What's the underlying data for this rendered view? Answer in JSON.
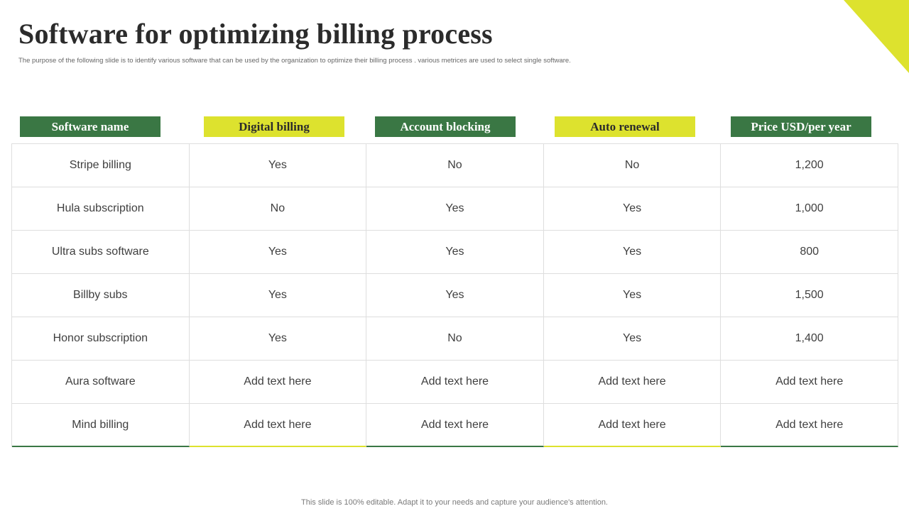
{
  "title": "Software for optimizing billing process",
  "subtitle": "The purpose of the following slide is to identify various software that can be used by the organization to optimize their billing process . various metrices are used to select single software.",
  "colors": {
    "green": "#3a7744",
    "yellow": "#dde22e"
  },
  "table": {
    "headers": [
      {
        "label": "Software name",
        "style": "green"
      },
      {
        "label": "Digital billing",
        "style": "yellow"
      },
      {
        "label": "Account blocking",
        "style": "green"
      },
      {
        "label": "Auto renewal",
        "style": "yellow"
      },
      {
        "label": "Price USD/per year",
        "style": "green"
      }
    ],
    "rows": [
      [
        "Stripe billing",
        "Yes",
        "No",
        "No",
        "1,200"
      ],
      [
        "Hula subscription",
        "No",
        "Yes",
        "Yes",
        "1,000"
      ],
      [
        "Ultra subs software",
        "Yes",
        "Yes",
        "Yes",
        "800"
      ],
      [
        "Billby subs",
        "Yes",
        "Yes",
        "Yes",
        "1,500"
      ],
      [
        "Honor subscription",
        "Yes",
        "No",
        "Yes",
        "1,400"
      ],
      [
        "Aura software",
        "Add text here",
        "Add text here",
        "Add text here",
        "Add text here"
      ],
      [
        "Mind billing",
        "Add text here",
        "Add text here",
        "Add text here",
        "Add text here"
      ]
    ]
  },
  "footer": "This slide is 100% editable. Adapt it to your needs and capture your audience's attention."
}
